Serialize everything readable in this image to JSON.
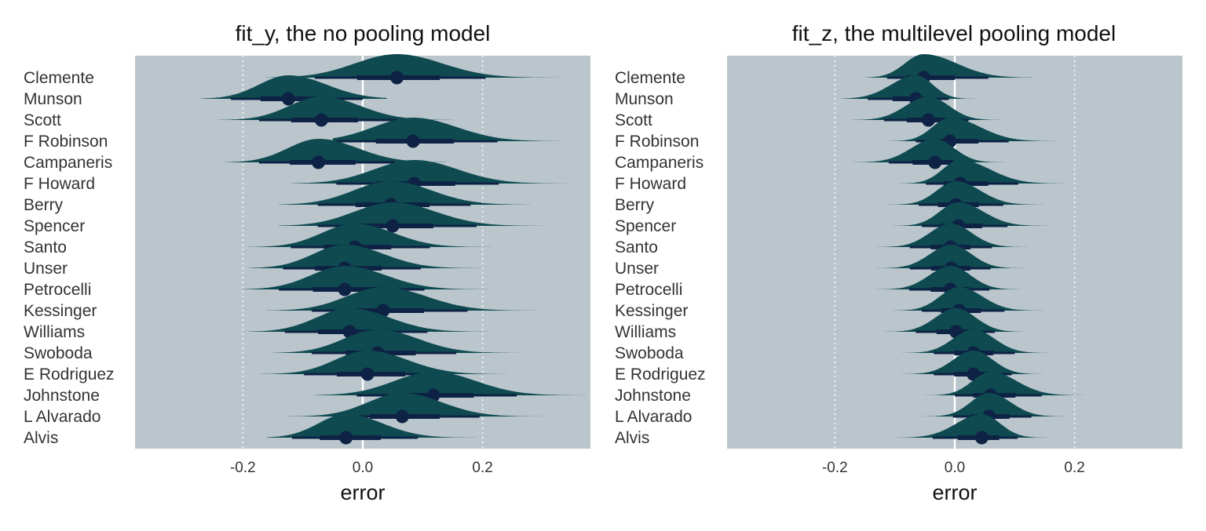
{
  "chart_data": [
    {
      "type": "halfeye",
      "title": "fit_y, the no pooling model",
      "xlabel": "error",
      "ylabel": "",
      "xlim": [
        -0.38,
        0.38
      ],
      "xticks": [
        -0.2,
        0.0,
        0.2
      ],
      "xtick_labels": [
        "-0.2",
        "0.0",
        "0.2"
      ],
      "grid": "dotted vertical at ±0.2, solid white at 0",
      "categories": [
        "Clemente",
        "Munson",
        "Scott",
        "F Robinson",
        "Campaneris",
        "F Howard",
        "Berry",
        "Spencer",
        "Santo",
        "Unser",
        "Petrocelli",
        "Kessinger",
        "Williams",
        "Swoboda",
        "E Rodriguez",
        "Johnstone",
        "L Alvarado",
        "Alvis"
      ],
      "point": [
        0.057,
        -0.124,
        -0.069,
        0.084,
        -0.074,
        0.086,
        0.047,
        0.05,
        -0.013,
        -0.03,
        -0.03,
        0.034,
        -0.022,
        0.025,
        0.008,
        0.118,
        0.066,
        -0.028
      ],
      "lower95": [
        -0.08,
        -0.22,
        -0.173,
        -0.044,
        -0.173,
        -0.044,
        -0.075,
        -0.075,
        -0.12,
        -0.133,
        -0.14,
        -0.085,
        -0.13,
        -0.085,
        -0.098,
        -0.01,
        -0.046,
        -0.118
      ],
      "upper95": [
        0.205,
        0.0,
        0.057,
        0.225,
        0.054,
        0.227,
        0.18,
        0.19,
        0.112,
        0.097,
        0.103,
        0.175,
        0.108,
        0.156,
        0.138,
        0.257,
        0.195,
        0.092
      ],
      "dist_lower": [
        -0.16,
        -0.27,
        -0.24,
        -0.05,
        -0.23,
        -0.12,
        -0.14,
        -0.14,
        -0.19,
        -0.19,
        -0.2,
        -0.16,
        -0.19,
        -0.15,
        -0.17,
        -0.08,
        -0.13,
        -0.16
      ],
      "dist_upper": [
        0.33,
        0.04,
        0.15,
        0.33,
        0.14,
        0.34,
        0.28,
        0.3,
        0.23,
        0.2,
        0.21,
        0.31,
        0.21,
        0.26,
        0.24,
        0.38,
        0.32,
        0.19
      ],
      "colors": {
        "panel": "#bac5cc",
        "density": "#0e4a50",
        "interval": "#0d2244",
        "grid": "#ffffff"
      }
    },
    {
      "type": "halfeye",
      "title": "fit_z, the multilevel pooling model",
      "xlabel": "error",
      "ylabel": "",
      "xlim": [
        -0.38,
        0.38
      ],
      "xticks": [
        -0.2,
        0.0,
        0.2
      ],
      "xtick_labels": [
        "-0.2",
        "0.0",
        "0.2"
      ],
      "grid": "dotted vertical at ±0.2, solid white at 0",
      "categories": [
        "Clemente",
        "Munson",
        "Scott",
        "F Robinson",
        "Campaneris",
        "F Howard",
        "Berry",
        "Spencer",
        "Santo",
        "Unser",
        "Petrocelli",
        "Kessinger",
        "Williams",
        "Swoboda",
        "E Rodriguez",
        "Johnstone",
        "L Alvarado",
        "Alvis"
      ],
      "point": [
        -0.052,
        -0.065,
        -0.044,
        -0.008,
        -0.033,
        0.009,
        0.002,
        0.006,
        -0.007,
        -0.006,
        -0.007,
        0.007,
        0.002,
        0.031,
        0.031,
        0.06,
        0.057,
        0.045
      ],
      "lower95": [
        -0.113,
        -0.145,
        -0.118,
        -0.065,
        -0.11,
        -0.048,
        -0.06,
        -0.055,
        -0.075,
        -0.075,
        -0.076,
        -0.055,
        -0.065,
        -0.035,
        -0.035,
        0.0,
        -0.003,
        -0.037
      ],
      "upper95": [
        0.056,
        -0.01,
        0.023,
        0.09,
        0.03,
        0.106,
        0.081,
        0.088,
        0.062,
        0.06,
        0.058,
        0.083,
        0.067,
        0.1,
        0.095,
        0.145,
        0.128,
        0.105
      ],
      "dist_lower": [
        -0.15,
        -0.19,
        -0.17,
        -0.12,
        -0.17,
        -0.1,
        -0.12,
        -0.11,
        -0.15,
        -0.15,
        -0.14,
        -0.13,
        -0.14,
        -0.12,
        -0.12,
        -0.06,
        -0.08,
        -0.1
      ],
      "dist_upper": [
        0.13,
        0.05,
        0.08,
        0.18,
        0.13,
        0.21,
        0.16,
        0.17,
        0.14,
        0.13,
        0.13,
        0.18,
        0.15,
        0.18,
        0.17,
        0.26,
        0.2,
        0.16
      ],
      "colors": {
        "panel": "#bac5cc",
        "density": "#0e4a50",
        "interval": "#0d2244",
        "grid": "#ffffff"
      }
    }
  ]
}
